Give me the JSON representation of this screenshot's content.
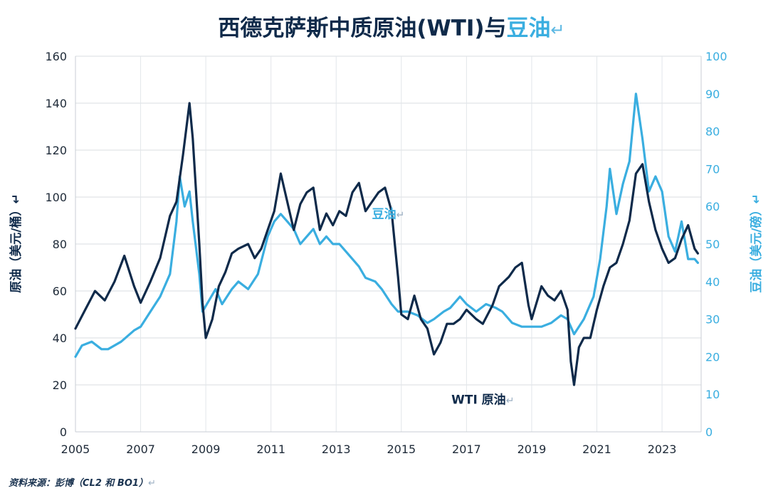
{
  "title": {
    "main": "西德克萨斯中质原油(WTI)与",
    "highlight": "豆油",
    "return_mark": "↵",
    "highlight_color": "#3aaee0",
    "main_color": "#0f2a4a"
  },
  "source": {
    "text": "资料来源：彭博（CL2 和 BO1）",
    "return_mark": "↵"
  },
  "chart_data": {
    "type": "line",
    "x_ticks": [
      "2005",
      "2007",
      "2009",
      "2011",
      "2013",
      "2015",
      "2017",
      "2019",
      "2021",
      "2023"
    ],
    "xlim": [
      2005,
      2024.2
    ],
    "left_axis": {
      "label": "原油（美元/桶）",
      "return_mark": "↵",
      "ylim": [
        0,
        160
      ],
      "ticks": [
        "0",
        "20",
        "40",
        "60",
        "80",
        "100",
        "120",
        "140",
        "160"
      ]
    },
    "right_axis": {
      "label": "豆油（美元/磅）",
      "return_mark": "↵",
      "ylim": [
        0,
        100
      ],
      "ticks": [
        "0",
        "10",
        "20",
        "30",
        "40",
        "50",
        "60",
        "70",
        "80",
        "90",
        "100"
      ]
    },
    "grid": true,
    "series": [
      {
        "name": "WTI 原油",
        "return_mark": "↵",
        "axis": "left",
        "color": "#0f2a4a",
        "points": [
          [
            2005.0,
            44
          ],
          [
            2005.3,
            52
          ],
          [
            2005.6,
            60
          ],
          [
            2005.9,
            56
          ],
          [
            2006.2,
            64
          ],
          [
            2006.5,
            75
          ],
          [
            2006.8,
            62
          ],
          [
            2007.0,
            55
          ],
          [
            2007.3,
            64
          ],
          [
            2007.6,
            74
          ],
          [
            2007.9,
            92
          ],
          [
            2008.1,
            98
          ],
          [
            2008.3,
            118
          ],
          [
            2008.5,
            140
          ],
          [
            2008.6,
            125
          ],
          [
            2008.8,
            80
          ],
          [
            2008.9,
            55
          ],
          [
            2009.0,
            40
          ],
          [
            2009.2,
            48
          ],
          [
            2009.4,
            62
          ],
          [
            2009.6,
            68
          ],
          [
            2009.8,
            76
          ],
          [
            2010.0,
            78
          ],
          [
            2010.3,
            80
          ],
          [
            2010.5,
            74
          ],
          [
            2010.7,
            78
          ],
          [
            2010.9,
            86
          ],
          [
            2011.1,
            94
          ],
          [
            2011.3,
            110
          ],
          [
            2011.5,
            98
          ],
          [
            2011.7,
            86
          ],
          [
            2011.9,
            97
          ],
          [
            2012.1,
            102
          ],
          [
            2012.3,
            104
          ],
          [
            2012.5,
            86
          ],
          [
            2012.7,
            93
          ],
          [
            2012.9,
            88
          ],
          [
            2013.1,
            94
          ],
          [
            2013.3,
            92
          ],
          [
            2013.5,
            102
          ],
          [
            2013.7,
            106
          ],
          [
            2013.9,
            94
          ],
          [
            2014.1,
            98
          ],
          [
            2014.3,
            102
          ],
          [
            2014.5,
            104
          ],
          [
            2014.7,
            94
          ],
          [
            2014.9,
            66
          ],
          [
            2015.0,
            50
          ],
          [
            2015.2,
            48
          ],
          [
            2015.4,
            58
          ],
          [
            2015.6,
            48
          ],
          [
            2015.8,
            44
          ],
          [
            2016.0,
            33
          ],
          [
            2016.2,
            38
          ],
          [
            2016.4,
            46
          ],
          [
            2016.6,
            46
          ],
          [
            2016.8,
            48
          ],
          [
            2017.0,
            52
          ],
          [
            2017.3,
            48
          ],
          [
            2017.5,
            46
          ],
          [
            2017.8,
            54
          ],
          [
            2018.0,
            62
          ],
          [
            2018.3,
            66
          ],
          [
            2018.5,
            70
          ],
          [
            2018.7,
            72
          ],
          [
            2018.9,
            54
          ],
          [
            2019.0,
            48
          ],
          [
            2019.3,
            62
          ],
          [
            2019.5,
            58
          ],
          [
            2019.7,
            56
          ],
          [
            2019.9,
            60
          ],
          [
            2020.1,
            52
          ],
          [
            2020.2,
            30
          ],
          [
            2020.3,
            20
          ],
          [
            2020.45,
            36
          ],
          [
            2020.6,
            40
          ],
          [
            2020.8,
            40
          ],
          [
            2021.0,
            52
          ],
          [
            2021.2,
            62
          ],
          [
            2021.4,
            70
          ],
          [
            2021.6,
            72
          ],
          [
            2021.8,
            80
          ],
          [
            2022.0,
            90
          ],
          [
            2022.2,
            110
          ],
          [
            2022.4,
            114
          ],
          [
            2022.6,
            98
          ],
          [
            2022.8,
            86
          ],
          [
            2023.0,
            78
          ],
          [
            2023.2,
            72
          ],
          [
            2023.4,
            74
          ],
          [
            2023.6,
            82
          ],
          [
            2023.8,
            88
          ],
          [
            2024.0,
            78
          ],
          [
            2024.1,
            76
          ]
        ]
      },
      {
        "name": "豆油",
        "return_mark": "↵",
        "axis": "right",
        "color": "#3aaee0",
        "points": [
          [
            2005.0,
            20
          ],
          [
            2005.2,
            23
          ],
          [
            2005.5,
            24
          ],
          [
            2005.8,
            22
          ],
          [
            2006.0,
            22
          ],
          [
            2006.4,
            24
          ],
          [
            2006.8,
            27
          ],
          [
            2007.0,
            28
          ],
          [
            2007.3,
            32
          ],
          [
            2007.6,
            36
          ],
          [
            2007.9,
            42
          ],
          [
            2008.1,
            56
          ],
          [
            2008.2,
            68
          ],
          [
            2008.35,
            60
          ],
          [
            2008.5,
            64
          ],
          [
            2008.6,
            56
          ],
          [
            2008.8,
            42
          ],
          [
            2008.9,
            32
          ],
          [
            2009.1,
            35
          ],
          [
            2009.3,
            38
          ],
          [
            2009.5,
            34
          ],
          [
            2009.8,
            38
          ],
          [
            2010.0,
            40
          ],
          [
            2010.3,
            38
          ],
          [
            2010.6,
            42
          ],
          [
            2010.9,
            52
          ],
          [
            2011.1,
            56
          ],
          [
            2011.3,
            58
          ],
          [
            2011.5,
            56
          ],
          [
            2011.7,
            54
          ],
          [
            2011.9,
            50
          ],
          [
            2012.1,
            52
          ],
          [
            2012.3,
            54
          ],
          [
            2012.5,
            50
          ],
          [
            2012.7,
            52
          ],
          [
            2012.9,
            50
          ],
          [
            2013.1,
            50
          ],
          [
            2013.3,
            48
          ],
          [
            2013.5,
            46
          ],
          [
            2013.7,
            44
          ],
          [
            2013.9,
            41
          ],
          [
            2014.2,
            40
          ],
          [
            2014.4,
            38
          ],
          [
            2014.7,
            34
          ],
          [
            2014.9,
            32
          ],
          [
            2015.2,
            32
          ],
          [
            2015.5,
            31
          ],
          [
            2015.8,
            29
          ],
          [
            2016.0,
            30
          ],
          [
            2016.3,
            32
          ],
          [
            2016.5,
            33
          ],
          [
            2016.8,
            36
          ],
          [
            2017.0,
            34
          ],
          [
            2017.3,
            32
          ],
          [
            2017.6,
            34
          ],
          [
            2017.9,
            33
          ],
          [
            2018.1,
            32
          ],
          [
            2018.4,
            29
          ],
          [
            2018.7,
            28
          ],
          [
            2019.0,
            28
          ],
          [
            2019.3,
            28
          ],
          [
            2019.6,
            29
          ],
          [
            2019.9,
            31
          ],
          [
            2020.1,
            30
          ],
          [
            2020.3,
            26
          ],
          [
            2020.6,
            30
          ],
          [
            2020.9,
            36
          ],
          [
            2021.1,
            46
          ],
          [
            2021.3,
            60
          ],
          [
            2021.4,
            70
          ],
          [
            2021.6,
            58
          ],
          [
            2021.8,
            66
          ],
          [
            2022.0,
            72
          ],
          [
            2022.2,
            90
          ],
          [
            2022.4,
            78
          ],
          [
            2022.6,
            64
          ],
          [
            2022.8,
            68
          ],
          [
            2023.0,
            64
          ],
          [
            2023.2,
            52
          ],
          [
            2023.4,
            48
          ],
          [
            2023.6,
            56
          ],
          [
            2023.8,
            46
          ],
          [
            2024.0,
            46
          ],
          [
            2024.1,
            45
          ]
        ]
      }
    ],
    "annotations": [
      {
        "text": "豆油",
        "return_mark": "↵",
        "series": "豆油",
        "x": 2014.6,
        "y_left": 91
      },
      {
        "text": "WTI 原油",
        "return_mark": "↵",
        "series": "WTI 原油",
        "x": 2017.5,
        "y_left": 12
      }
    ]
  }
}
